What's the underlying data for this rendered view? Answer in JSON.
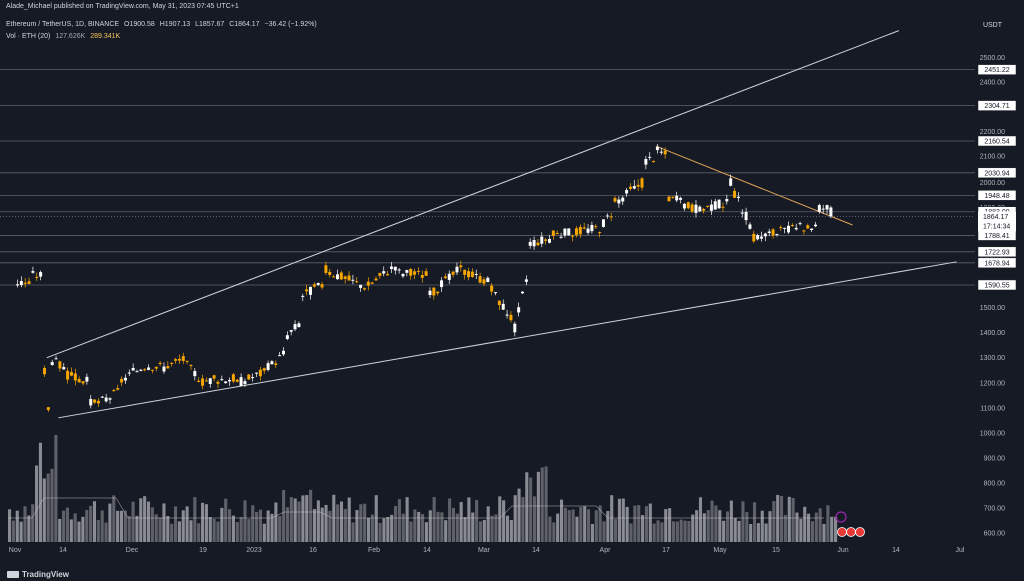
{
  "header": {
    "publisher": "Alade_Michael published on TradingView.com, May 31, 2023 07:45 UTC+1",
    "symbol": "Ethereum / TetherUS, 1D, BINANCE",
    "open": "O1900.58",
    "high": "H1907.13",
    "low": "L1857.67",
    "close": "C1864.17",
    "change": "−36.42 (−1.92%)",
    "vol_label": "Vol · ETH (20)",
    "vol_value": "127.626K",
    "vol_ma": "289.341K"
  },
  "currency": "USDT",
  "footer": {
    "brand": "TradingView"
  },
  "colors": {
    "background": "#161a25",
    "up": "#f7a600",
    "down": "#ffffff",
    "level_line": "#5d606b",
    "trend_line": "#d1d4dc",
    "resistance_line": "#e0a458"
  },
  "chart_data": {
    "type": "candlestick",
    "y_axis_ticks": [
      600,
      700,
      800,
      900,
      1000,
      1100,
      1200,
      1300,
      1400,
      1500,
      1600,
      1700,
      1800,
      1900,
      2000,
      2100,
      2200,
      2400,
      2500
    ],
    "x_axis_ticks": [
      "Nov",
      "14",
      "Dec",
      "19",
      "2023",
      "16",
      "Feb",
      "14",
      "Mar",
      "14",
      "Apr",
      "17",
      "May",
      "15",
      "Jun",
      "14",
      "Jul"
    ],
    "price_levels": [
      "2451.22",
      "2304.71",
      "2160.54",
      "2030.94",
      "1948.48",
      "1883.00",
      "1788.41",
      "1722.93",
      "1678.94",
      "1590.55"
    ],
    "current_price": {
      "price": "1864.17",
      "countdown": "17:14:34"
    },
    "trend_lines": [
      {
        "name": "upper-channel",
        "from": [
          "2022-11-09",
          1300
        ],
        "to": [
          "2023-06-18",
          2610
        ]
      },
      {
        "name": "lower-channel",
        "from": [
          "2022-11-12",
          1060
        ],
        "to": [
          "2023-07-03",
          1683
        ]
      },
      {
        "name": "descending-resistance",
        "from": [
          "2023-04-16",
          2140
        ],
        "to": [
          "2023-06-06",
          1830
        ]
      }
    ],
    "candles_approx": [
      [
        "2022-11-01",
        1580,
        1620,
        1530,
        1600
      ],
      [
        "2022-11-05",
        1600,
        1660,
        1570,
        1630
      ],
      [
        "2022-11-08",
        1630,
        1650,
        1200,
        1250
      ],
      [
        "2022-11-09",
        1250,
        1300,
        1070,
        1100
      ],
      [
        "2022-11-10",
        1100,
        1300,
        1080,
        1290
      ],
      [
        "2022-11-14",
        1250,
        1280,
        1200,
        1230
      ],
      [
        "2022-11-20",
        1200,
        1220,
        1100,
        1120
      ],
      [
        "2022-11-22",
        1110,
        1140,
        1070,
        1120
      ],
      [
        "2022-11-28",
        1170,
        1230,
        1160,
        1210
      ],
      [
        "2022-12-05",
        1280,
        1300,
        1240,
        1270
      ],
      [
        "2022-12-10",
        1260,
        1280,
        1250,
        1270
      ],
      [
        "2022-12-15",
        1300,
        1330,
        1250,
        1270
      ],
      [
        "2022-12-20",
        1190,
        1220,
        1170,
        1210
      ],
      [
        "2022-12-28",
        1220,
        1230,
        1190,
        1200
      ],
      [
        "2023-01-05",
        1250,
        1280,
        1240,
        1260
      ],
      [
        "2023-01-10",
        1330,
        1400,
        1320,
        1390
      ],
      [
        "2023-01-14",
        1450,
        1560,
        1440,
        1550
      ],
      [
        "2023-01-20",
        1600,
        1670,
        1580,
        1650
      ],
      [
        "2023-01-31",
        1580,
        1610,
        1550,
        1590
      ],
      [
        "2023-02-08",
        1680,
        1700,
        1620,
        1640
      ],
      [
        "2023-02-16",
        1630,
        1690,
        1520,
        1550
      ],
      [
        "2023-02-24",
        1660,
        1700,
        1640,
        1650
      ],
      [
        "2023-03-04",
        1600,
        1620,
        1550,
        1570
      ],
      [
        "2023-03-10",
        1440,
        1460,
        1370,
        1420
      ],
      [
        "2023-03-14",
        1680,
        1780,
        1660,
        1760
      ],
      [
        "2023-03-20",
        1780,
        1810,
        1740,
        1790
      ],
      [
        "2023-04-01",
        1820,
        1850,
        1780,
        1820
      ],
      [
        "2023-04-05",
        1900,
        1950,
        1880,
        1920
      ],
      [
        "2023-04-13",
        2010,
        2100,
        2000,
        2080
      ],
      [
        "2023-04-16",
        2100,
        2140,
        2090,
        2120
      ],
      [
        "2023-04-19",
        2100,
        2110,
        1910,
        1940
      ],
      [
        "2023-04-28",
        1880,
        1940,
        1860,
        1900
      ],
      [
        "2023-05-05",
        1920,
        2010,
        1880,
        1990
      ],
      [
        "2023-05-11",
        1800,
        1820,
        1750,
        1780
      ],
      [
        "2023-05-20",
        1810,
        1830,
        1790,
        1810
      ],
      [
        "2023-05-28",
        1830,
        1910,
        1820,
        1900
      ],
      [
        "2023-05-31",
        1900,
        1907,
        1857,
        1864
      ]
    ]
  }
}
